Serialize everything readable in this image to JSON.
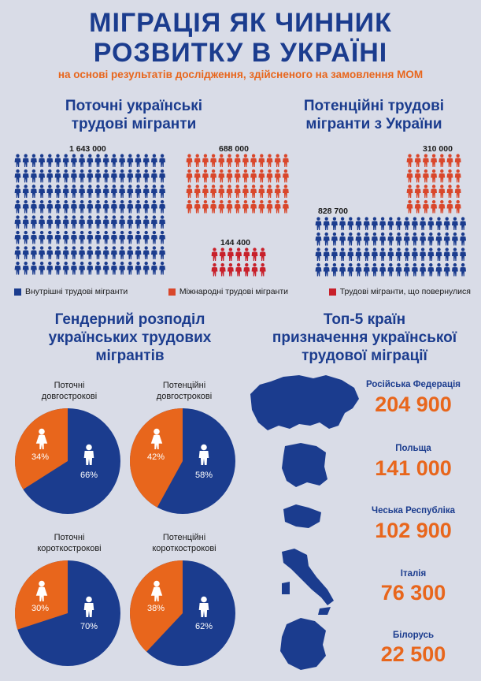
{
  "header": {
    "title_line1": "МІГРАЦІЯ ЯК ЧИННИК",
    "title_line2": "РОЗВИТКУ В УКРАЇНІ",
    "subtitle": "на основі результатів дослідження, здійсненого на замовлення МОМ"
  },
  "sections": {
    "current": [
      "Поточні українські",
      "трудові мігранти"
    ],
    "potential": [
      "Потенційні трудові",
      "мігранти з України"
    ],
    "gender": [
      "Гендерний розподіл",
      "українських трудових",
      "мігрантів"
    ],
    "top5": [
      "Топ-5 країн",
      "призначення української",
      "трудової міграції"
    ]
  },
  "migrant_counts": {
    "current_internal": "1 643 000",
    "current_international": "688 000",
    "current_returned": "144 400",
    "potential_internal": "828 700",
    "potential_international": "310 000"
  },
  "legend": [
    {
      "label": "Внутрішні трудові мігранти",
      "color": "#1b3c8e"
    },
    {
      "label": "Міжнародні трудові мігранти",
      "color": "#d9472b"
    },
    {
      "label": "Трудові мігранти, що повернулися",
      "color": "#c8202a"
    }
  ],
  "colors": {
    "blue": "#1b3c8e",
    "orange": "#e8661c",
    "red": "#d9472b",
    "dark_red": "#c8202a"
  },
  "pies": [
    {
      "label": [
        "Поточні",
        "довгострокові"
      ],
      "female_pct": "34%",
      "male_pct": "66%",
      "female": 34
    },
    {
      "label": [
        "Потенційні",
        "довгострокові"
      ],
      "female_pct": "42%",
      "male_pct": "58%",
      "female": 42
    },
    {
      "label": [
        "Поточні",
        "короткострокові"
      ],
      "female_pct": "30%",
      "male_pct": "70%",
      "female": 30
    },
    {
      "label": [
        "Потенційні",
        "короткострокові"
      ],
      "female_pct": "38%",
      "male_pct": "62%",
      "female": 38
    }
  ],
  "countries": [
    {
      "name": "Російська Федерація",
      "value": "204 900"
    },
    {
      "name": "Польща",
      "value": "141 000"
    },
    {
      "name": "Чеська Республіка",
      "value": "102 900"
    },
    {
      "name": "Італія",
      "value": "76 300"
    },
    {
      "name": "Білорусь",
      "value": "22 500"
    }
  ]
}
